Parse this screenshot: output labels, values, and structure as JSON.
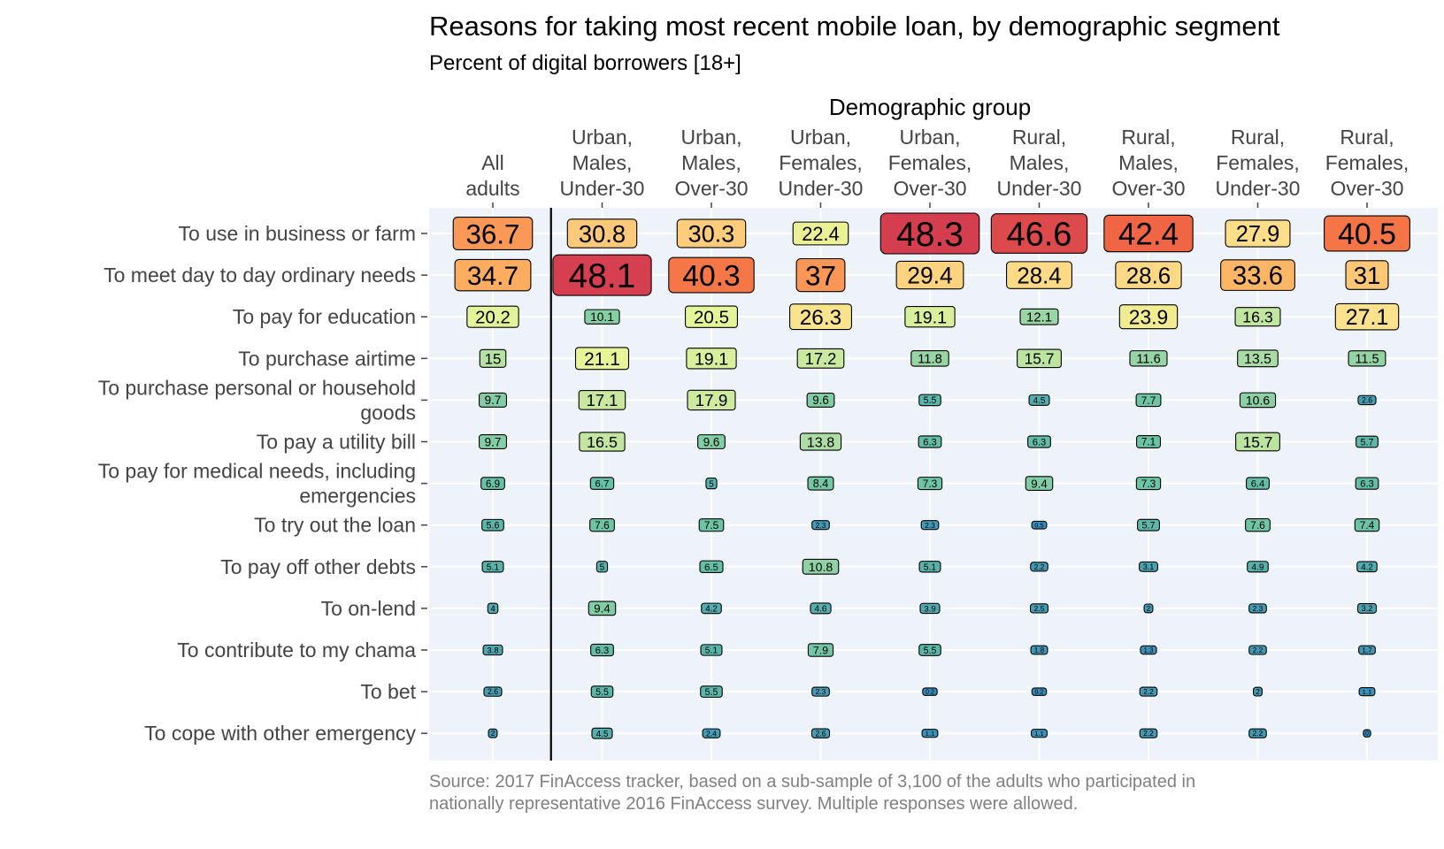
{
  "chart_data": {
    "type": "heatmap",
    "title": "Reasons for taking most recent mobile loan, by demographic segment",
    "subtitle": "Percent of digital borrowers [18+]",
    "x_axis_title": "Demographic group",
    "caption": "Source: 2017 FinAccess tracker, based on a sub-sample of 3,100 of the adults who participated in nationally representative 2016 FinAccess survey. Multiple responses were allowed.",
    "columns": [
      [
        "All",
        "adults"
      ],
      [
        "Urban,",
        "Males,",
        "Under-30"
      ],
      [
        "Urban,",
        "Males,",
        "Over-30"
      ],
      [
        "Urban,",
        "Females,",
        "Under-30"
      ],
      [
        "Urban,",
        "Females,",
        "Over-30"
      ],
      [
        "Rural,",
        "Males,",
        "Under-30"
      ],
      [
        "Rural,",
        "Males,",
        "Over-30"
      ],
      [
        "Rural,",
        "Females,",
        "Under-30"
      ],
      [
        "Rural,",
        "Females,",
        "Over-30"
      ]
    ],
    "rows": [
      [
        "To use in business or farm"
      ],
      [
        "To meet day to day ordinary needs"
      ],
      [
        "To pay for education"
      ],
      [
        "To purchase airtime"
      ],
      [
        "To purchase personal or household",
        "goods"
      ],
      [
        "To pay a utility bill"
      ],
      [
        "To pay for medical needs, including",
        "emergencies"
      ],
      [
        "To try out the loan"
      ],
      [
        "To pay off other debts"
      ],
      [
        "To on-lend"
      ],
      [
        "To contribute to my chama"
      ],
      [
        "To bet"
      ],
      [
        "To cope with other emergency"
      ]
    ],
    "values": [
      [
        36.7,
        30.8,
        30.3,
        22.4,
        48.3,
        46.6,
        42.4,
        27.9,
        40.5
      ],
      [
        34.7,
        48.1,
        40.3,
        37,
        29.4,
        28.4,
        28.6,
        33.6,
        31
      ],
      [
        20.2,
        10.1,
        20.5,
        26.3,
        19.1,
        12.1,
        23.9,
        16.3,
        27.1
      ],
      [
        15,
        21.1,
        19.1,
        17.2,
        11.8,
        15.7,
        11.6,
        13.5,
        11.5
      ],
      [
        9.7,
        17.1,
        17.9,
        9.6,
        5.5,
        4.5,
        7.7,
        10.6,
        2.6
      ],
      [
        9.7,
        16.5,
        9.6,
        13.8,
        6.3,
        6.3,
        7.1,
        15.7,
        5.7
      ],
      [
        6.9,
        6.7,
        5,
        8.4,
        7.3,
        9.4,
        7.3,
        6.4,
        6.3
      ],
      [
        5.6,
        7.6,
        7.5,
        2.3,
        2.3,
        0.5,
        5.7,
        7.6,
        7.4
      ],
      [
        5.1,
        5,
        6.5,
        10.8,
        5.1,
        2.2,
        3.1,
        4.9,
        4.2
      ],
      [
        4,
        9.4,
        4.2,
        4.6,
        3.9,
        2.5,
        2,
        2.3,
        3.2
      ],
      [
        3.8,
        6.3,
        5.1,
        7.9,
        5.5,
        1.8,
        1.3,
        2.2,
        1.7
      ],
      [
        2.6,
        5.5,
        5.5,
        2.3,
        0.2,
        0.2,
        2.2,
        2,
        1.1
      ],
      [
        2,
        4.5,
        2.4,
        2.6,
        1.1,
        1.1,
        2.2,
        2.2,
        0
      ]
    ],
    "color_scale": [
      "#3288bd",
      "#66c2a5",
      "#abdda4",
      "#e6f598",
      "#fee08b",
      "#fdae61",
      "#f46d43",
      "#d53e4f"
    ],
    "panel_background": "#eef3fa",
    "grid": true,
    "legend": "none"
  }
}
